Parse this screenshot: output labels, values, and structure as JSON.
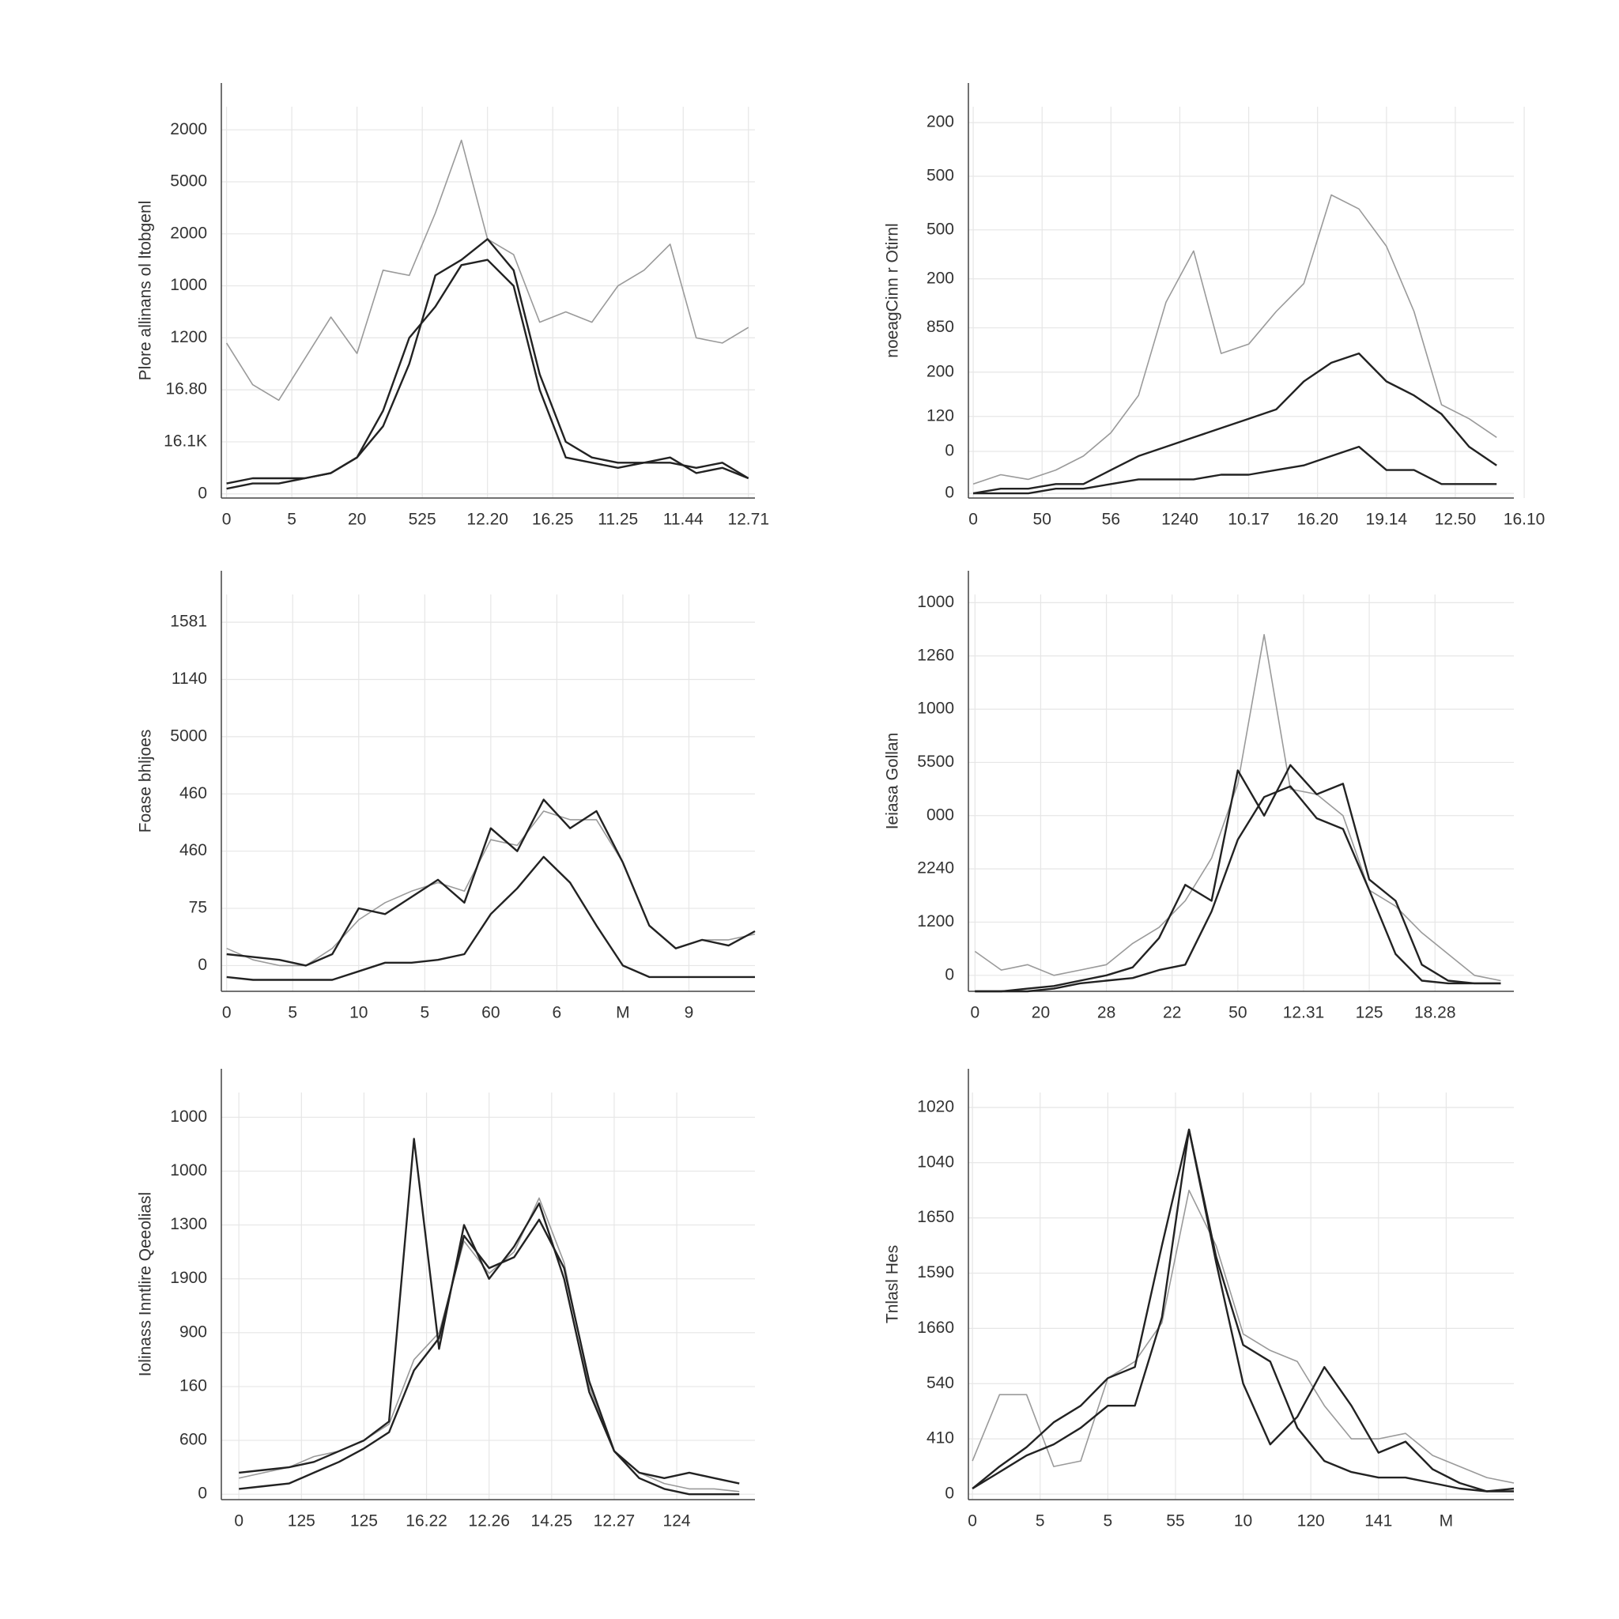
{
  "chart_data": [
    {
      "type": "line",
      "y_label": "Plore allinans ol ltobgenl",
      "grid": true,
      "x": [
        0,
        0.4,
        0.8,
        1.2,
        1.6,
        2,
        2.4,
        2.8,
        3.2,
        3.6,
        4,
        4.4,
        4.8,
        5.2,
        5.6,
        6,
        6.4,
        6.8,
        7.2,
        7.6,
        8
      ],
      "xlim": [
        -0.08,
        8.1
      ],
      "ylim": [
        -0.08,
        7.9
      ],
      "xticks": [
        0,
        {
          "value": 1,
          "label": "5"
        },
        {
          "value": 2,
          "label": "20"
        },
        {
          "value": 3,
          "label": "525"
        },
        {
          "value": 4,
          "label": "12.20"
        },
        {
          "value": 5,
          "label": "16.25"
        },
        {
          "value": 6,
          "label": "11.25"
        },
        {
          "value": 7,
          "label": "11.44"
        },
        {
          "value": 8,
          "label": "12.71"
        }
      ],
      "yticks": [
        0,
        {
          "value": 1,
          "label": "16.1K"
        },
        {
          "value": 2,
          "label": "16.80"
        },
        {
          "value": 3,
          "label": "1200"
        },
        {
          "value": 4,
          "label": "1000"
        },
        {
          "value": 5,
          "label": "2000"
        },
        {
          "value": 6,
          "label": "5000"
        },
        {
          "value": 7,
          "label": "2000"
        }
      ],
      "series": [
        {
          "color": "#9a9a9a",
          "values": [
            2.9,
            2.1,
            1.8,
            2.6,
            3.4,
            2.7,
            4.3,
            4.2,
            5.4,
            6.8,
            4.9,
            4.6,
            3.3,
            3.5,
            3.3,
            4.0,
            4.3,
            4.8,
            3.0,
            2.9,
            3.2
          ]
        },
        {
          "color": "#222222",
          "values": [
            0.2,
            0.3,
            0.3,
            0.3,
            0.4,
            0.7,
            1.3,
            2.5,
            4.2,
            4.5,
            4.9,
            4.3,
            2.3,
            1.0,
            0.7,
            0.6,
            0.6,
            0.7,
            0.4,
            0.5,
            0.3
          ]
        },
        {
          "color": "#222222",
          "values": [
            0.1,
            0.2,
            0.2,
            0.3,
            0.4,
            0.7,
            1.6,
            3.0,
            3.6,
            4.4,
            4.5,
            4.0,
            2.0,
            0.7,
            0.6,
            0.5,
            0.6,
            0.6,
            0.5,
            0.6,
            0.3
          ]
        }
      ]
    },
    {
      "type": "line",
      "y_label": "noeagCinn r Otirnl",
      "grid": true,
      "x": [
        0,
        0.4,
        0.8,
        1.2,
        1.6,
        2,
        2.4,
        2.8,
        3.2,
        3.6,
        4,
        4.4,
        4.8,
        5.2,
        5.6,
        6,
        6.4,
        6.8,
        7.2,
        7.6
      ],
      "xlim": [
        -0.07,
        7.85
      ],
      "ylim": [
        -0.1,
        8.8
      ],
      "xticks": [
        0,
        {
          "value": 1,
          "label": "50"
        },
        {
          "value": 2,
          "label": "56"
        },
        {
          "value": 3,
          "label": "1240"
        },
        {
          "value": 4,
          "label": "10.17"
        },
        {
          "value": 5,
          "label": "16.20"
        },
        {
          "value": 6,
          "label": "19.14"
        },
        {
          "value": 7,
          "label": "12.50"
        },
        {
          "value": 8,
          "label": "16.10"
        }
      ],
      "yticks": [
        0,
        {
          "value": 0.9,
          "label": "0"
        },
        {
          "value": 1.65,
          "label": "120"
        },
        {
          "value": 2.6,
          "label": "200"
        },
        {
          "value": 3.55,
          "label": "850"
        },
        {
          "value": 4.6,
          "label": "200"
        },
        {
          "value": 5.65,
          "label": "500"
        },
        {
          "value": 6.8,
          "label": "500"
        },
        {
          "value": 7.95,
          "label": "200"
        }
      ],
      "series": [
        {
          "color": "#9a9a9a",
          "values": [
            0.2,
            0.4,
            0.3,
            0.5,
            0.8,
            1.3,
            2.1,
            4.1,
            5.2,
            3.0,
            3.2,
            3.9,
            4.5,
            6.4,
            6.1,
            5.3,
            3.9,
            1.9,
            1.6,
            1.2
          ]
        },
        {
          "color": "#222222",
          "values": [
            0.0,
            0.1,
            0.1,
            0.2,
            0.2,
            0.5,
            0.8,
            1.0,
            1.2,
            1.4,
            1.6,
            1.8,
            2.4,
            2.8,
            3.0,
            2.4,
            2.1,
            1.7,
            1.0,
            0.6
          ]
        },
        {
          "color": "#222222",
          "values": [
            0,
            0,
            0,
            0.1,
            0.1,
            0.2,
            0.3,
            0.3,
            0.3,
            0.4,
            0.4,
            0.5,
            0.6,
            0.8,
            1.0,
            0.5,
            0.5,
            0.2,
            0.2,
            0.2
          ]
        }
      ]
    },
    {
      "type": "line",
      "y_label": "Foase bhljoes",
      "grid": true,
      "x": [
        0,
        0.4,
        0.8,
        1.2,
        1.6,
        2,
        2.4,
        2.8,
        3.2,
        3.6,
        4,
        4.4,
        4.8,
        5.2,
        5.6,
        6,
        6.4,
        6.8,
        7.2,
        7.6,
        8
      ],
      "xlim": [
        -0.08,
        8.0
      ],
      "ylim": [
        -0.45,
        6.9
      ],
      "xticks": [
        0,
        {
          "value": 1,
          "label": "5"
        },
        {
          "value": 2,
          "label": "10"
        },
        {
          "value": 3,
          "label": "5"
        },
        {
          "value": 4,
          "label": "60"
        },
        {
          "value": 5,
          "label": "6"
        },
        {
          "value": 6,
          "label": "M"
        },
        {
          "value": 7,
          "label": "9"
        }
      ],
      "yticks": [
        0,
        {
          "value": 1,
          "label": "75"
        },
        {
          "value": 2,
          "label": "460"
        },
        {
          "value": 3,
          "label": "460"
        },
        {
          "value": 4,
          "label": "5000"
        },
        {
          "value": 5,
          "label": "1140"
        },
        {
          "value": 6,
          "label": "1581"
        }
      ],
      "series": [
        {
          "color": "#9a9a9a",
          "values": [
            0.3,
            0.1,
            0,
            0,
            0.3,
            0.8,
            1.1,
            1.3,
            1.45,
            1.3,
            2.2,
            2.1,
            2.7,
            2.55,
            2.55,
            1.8,
            0.7,
            0.3,
            0.45,
            0.45,
            0.55
          ]
        },
        {
          "color": "#222222",
          "values": [
            0.2,
            0.15,
            0.1,
            0,
            0.2,
            1.0,
            0.9,
            1.2,
            1.5,
            1.1,
            2.4,
            2.0,
            2.9,
            2.4,
            2.7,
            1.8,
            0.7,
            0.3,
            0.45,
            0.35,
            0.6
          ]
        },
        {
          "color": "#222222",
          "values": [
            -0.2,
            -0.25,
            -0.25,
            -0.25,
            -0.25,
            -0.1,
            0.05,
            0.05,
            0.1,
            0.2,
            0.9,
            1.35,
            1.9,
            1.45,
            0.7,
            0,
            -0.2,
            -0.2,
            -0.2,
            -0.2,
            -0.2
          ]
        }
      ]
    },
    {
      "type": "line",
      "y_label": "Ieiasa Gollan",
      "grid": true,
      "x": [
        0,
        0.4,
        0.8,
        1.2,
        1.6,
        2,
        2.4,
        2.8,
        3.2,
        3.6,
        4,
        4.4,
        4.8,
        5.2,
        5.6,
        6,
        6.4,
        6.8,
        7.2,
        7.6,
        8
      ],
      "xlim": [
        -0.1,
        8.2
      ],
      "ylim": [
        -0.3,
        7.6
      ],
      "xticks": [
        0,
        {
          "value": 1,
          "label": "20"
        },
        {
          "value": 2,
          "label": "28"
        },
        {
          "value": 3,
          "label": "22"
        },
        {
          "value": 4,
          "label": "50"
        },
        {
          "value": 5,
          "label": "12.31"
        },
        {
          "value": 6,
          "label": "125"
        },
        {
          "value": 7,
          "label": "18.28"
        }
      ],
      "yticks": [
        0,
        {
          "value": 1,
          "label": "1200"
        },
        {
          "value": 2,
          "label": "2240"
        },
        {
          "value": 3,
          "label": "000"
        },
        {
          "value": 4,
          "label": "5500"
        },
        {
          "value": 5,
          "label": "1000"
        },
        {
          "value": 6,
          "label": "1260"
        },
        {
          "value": 7,
          "label": "1000"
        }
      ],
      "series": [
        {
          "color": "#9a9a9a",
          "values": [
            0.45,
            0.1,
            0.2,
            0,
            0.1,
            0.2,
            0.6,
            0.9,
            1.4,
            2.2,
            3.6,
            6.4,
            3.5,
            3.4,
            3.0,
            1.6,
            1.3,
            0.8,
            0.4,
            0,
            -0.1
          ]
        },
        {
          "color": "#222222",
          "values": [
            -0.3,
            -0.3,
            -0.25,
            -0.2,
            -0.1,
            0,
            0.15,
            0.7,
            1.7,
            1.4,
            3.85,
            3.0,
            3.95,
            3.4,
            3.6,
            1.8,
            1.4,
            0.2,
            -0.1,
            -0.15,
            -0.15
          ]
        },
        {
          "color": "#222222",
          "values": [
            -0.3,
            -0.3,
            -0.3,
            -0.25,
            -0.15,
            -0.1,
            -0.05,
            0.1,
            0.2,
            1.2,
            2.55,
            3.35,
            3.55,
            2.95,
            2.75,
            1.6,
            0.4,
            -0.1,
            -0.15,
            -0.15,
            -0.15
          ]
        }
      ]
    },
    {
      "type": "line",
      "y_label": "Iolinass Inntlire Qeeoliasl",
      "grid": true,
      "x": [
        0,
        0.4,
        0.8,
        1.2,
        1.6,
        2,
        2.4,
        2.8,
        3.2,
        3.6,
        4,
        4.4,
        4.8,
        5.2,
        5.6,
        6,
        6.4,
        6.8,
        7.2,
        7.6,
        8
      ],
      "xlim": [
        -0.28,
        8.25
      ],
      "ylim": [
        -0.1,
        7.9
      ],
      "xticks": [
        0,
        {
          "value": 1,
          "label": "125"
        },
        {
          "value": 2,
          "label": "125"
        },
        {
          "value": 3,
          "label": "16.22"
        },
        {
          "value": 4,
          "label": "12.26"
        },
        {
          "value": 5,
          "label": "14.25"
        },
        {
          "value": 6,
          "label": "12.27"
        },
        {
          "value": 7,
          "label": "124"
        }
      ],
      "yticks": [
        0,
        {
          "value": 1,
          "label": "600"
        },
        {
          "value": 2,
          "label": "160"
        },
        {
          "value": 3,
          "label": "900"
        },
        {
          "value": 4,
          "label": "1900"
        },
        {
          "value": 5,
          "label": "1300"
        },
        {
          "value": 6,
          "label": "1000"
        },
        {
          "value": 7,
          "label": "1000"
        }
      ],
      "series": [
        {
          "color": "#9a9a9a",
          "values": [
            0.3,
            0.4,
            0.5,
            0.7,
            0.8,
            1.0,
            1.3,
            2.5,
            3.0,
            4.7,
            4.1,
            4.5,
            5.5,
            4.3,
            2.0,
            0.8,
            0.4,
            0.2,
            0.1,
            0.1,
            0.05
          ]
        },
        {
          "color": "#222222",
          "values": [
            0.4,
            0.45,
            0.5,
            0.6,
            0.8,
            1.0,
            1.35,
            6.6,
            2.7,
            5.0,
            4.0,
            4.6,
            5.4,
            4.0,
            1.9,
            0.8,
            0.4,
            0.3,
            0.4,
            0.3,
            0.2
          ]
        },
        {
          "color": "#222222",
          "values": [
            0.1,
            0.15,
            0.2,
            0.4,
            0.6,
            0.85,
            1.15,
            2.3,
            2.9,
            4.8,
            4.2,
            4.4,
            5.1,
            4.2,
            2.1,
            0.8,
            0.3,
            0.1,
            0,
            0,
            0
          ]
        }
      ]
    },
    {
      "type": "line",
      "y_label": "Tnlasl Hes",
      "grid": true,
      "x": [
        0,
        0.4,
        0.8,
        1.2,
        1.6,
        2,
        2.4,
        2.8,
        3.2,
        3.6,
        4,
        4.4,
        4.8,
        5.2,
        5.6,
        6,
        6.4,
        6.8,
        7.2,
        7.6,
        8
      ],
      "xlim": [
        -0.06,
        8.0
      ],
      "ylim": [
        -0.1,
        7.7
      ],
      "xticks": [
        0,
        {
          "value": 1,
          "label": "5"
        },
        {
          "value": 2,
          "label": "5"
        },
        {
          "value": 3,
          "label": "55"
        },
        {
          "value": 4,
          "label": "10"
        },
        {
          "value": 5,
          "label": "120"
        },
        {
          "value": 6,
          "label": "141"
        },
        {
          "value": 7,
          "label": "M"
        }
      ],
      "yticks": [
        0,
        {
          "value": 1,
          "label": "410"
        },
        {
          "value": 2,
          "label": "540"
        },
        {
          "value": 3,
          "label": "1660"
        },
        {
          "value": 4,
          "label": "1590"
        },
        {
          "value": 5,
          "label": "1650"
        },
        {
          "value": 6,
          "label": "1040"
        },
        {
          "value": 7,
          "label": "1020"
        }
      ],
      "series": [
        {
          "color": "#9a9a9a",
          "values": [
            0.6,
            1.8,
            1.8,
            0.5,
            0.6,
            2.1,
            2.4,
            3.1,
            5.5,
            4.5,
            2.9,
            2.6,
            2.4,
            1.6,
            1.0,
            1.0,
            1.1,
            0.7,
            0.5,
            0.3,
            0.2
          ]
        },
        {
          "color": "#222222",
          "values": [
            0.1,
            0.5,
            0.85,
            1.3,
            1.6,
            2.1,
            2.3,
            4.5,
            6.6,
            4.2,
            2.0,
            0.9,
            1.4,
            2.3,
            1.6,
            0.75,
            0.95,
            0.45,
            0.2,
            0.05,
            0.1
          ]
        },
        {
          "color": "#222222",
          "values": [
            0.1,
            0.4,
            0.7,
            0.9,
            1.2,
            1.6,
            1.6,
            3.2,
            6.6,
            4.3,
            2.7,
            2.4,
            1.2,
            0.6,
            0.4,
            0.3,
            0.3,
            0.2,
            0.1,
            0.05,
            0.05
          ]
        }
      ]
    }
  ]
}
